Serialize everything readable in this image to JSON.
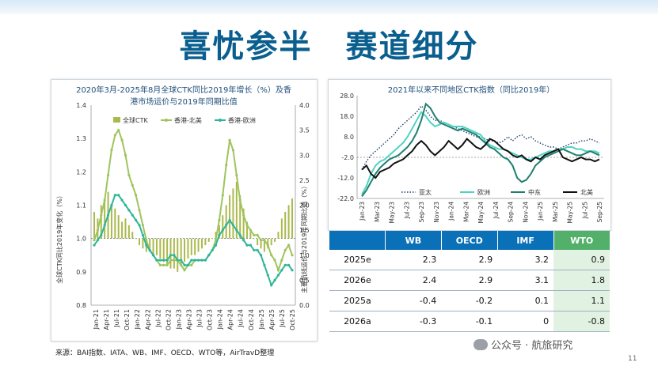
{
  "slide": {
    "title": "喜忧参半　赛道细分",
    "source": "来源：BAI指数、IATA、WB、IMF、OECD、WTO等，AirTravD整理",
    "watermark": "公众号 · 航旅研究",
    "page_number": "11"
  },
  "chart_data": [
    {
      "type": "bar+line",
      "title_line1": "2020年3月-2025年8月全球CTK同比2019年增长（%）及香",
      "title_line2": "港市场运价与2019年同期比值",
      "ylabel_left": "全球CTK同比2019年变化（%）",
      "ylabel_right": "主要航线运价与2019年同期比值（%）",
      "ylim_left": [
        0.8,
        1.4
      ],
      "ylim_right": [
        0.0,
        4.0
      ],
      "yticks_left": [
        "0.8",
        "0.9",
        "1.0",
        "1.1",
        "1.2",
        "1.3",
        "1.4"
      ],
      "yticks_right": [
        "0.0",
        "0.5",
        "1.0",
        "1.5",
        "2.0",
        "2.5",
        "3.0",
        "3.5",
        "4.0"
      ],
      "x_tick_labels": [
        "Jan-21",
        "Apr-21",
        "Jul-21",
        "Oct-21",
        "Jan-22",
        "Apr-22",
        "Jul-22",
        "Oct-22",
        "Jan-23",
        "Apr-23",
        "Jul-23",
        "Oct-23",
        "Jan-24",
        "Apr-24",
        "Jul-24",
        "Oct-24",
        "Jan-25",
        "Apr-25",
        "Jul-25",
        "Oct-25"
      ],
      "legend": [
        "全球CTK",
        "香港-北美",
        "香港-欧洲"
      ],
      "legend_position": "top",
      "reference_line_left": 1.0,
      "bar_color": "#aab94a",
      "line_colors": [
        "#9fc45e",
        "#30b598"
      ],
      "series": [
        {
          "name": "全球CTK",
          "axis": "left",
          "values": [
            1.08,
            1.06,
            1.1,
            1.12,
            1.14,
            1.1,
            1.09,
            1.07,
            1.05,
            1.06,
            1.04,
            1.02,
            1.0,
            0.98,
            0.97,
            0.96,
            0.96,
            0.95,
            0.95,
            0.94,
            0.93,
            0.92,
            0.91,
            0.91,
            0.9,
            0.92,
            0.93,
            0.94,
            0.95,
            0.95,
            0.96,
            0.97,
            0.98,
            0.99,
            1.0,
            1.02,
            1.04,
            1.07,
            1.1,
            1.13,
            1.15,
            1.17,
            1.13,
            1.09,
            1.05,
            1.02,
            1.0,
            0.98,
            0.97,
            0.96,
            0.97,
            0.98,
            0.99,
            1.02,
            1.06,
            1.08,
            1.1,
            1.12
          ]
        },
        {
          "name": "香港-北美",
          "axis": "right",
          "values": [
            1.3,
            1.5,
            1.8,
            2.1,
            2.6,
            3.1,
            3.4,
            3.5,
            3.3,
            3.0,
            2.6,
            2.4,
            2.2,
            1.9,
            1.6,
            1.3,
            1.1,
            1.0,
            0.9,
            0.8,
            0.8,
            0.8,
            0.9,
            0.9,
            0.9,
            0.8,
            0.7,
            0.8,
            0.8,
            0.9,
            0.9,
            0.9,
            0.9,
            1.0,
            1.1,
            1.3,
            1.7,
            2.2,
            2.8,
            3.3,
            3.1,
            2.6,
            2.1,
            1.8,
            1.6,
            1.5,
            1.4,
            1.4,
            1.3,
            1.3,
            1.2,
            1.0,
            0.9,
            0.7,
            0.9,
            1.1,
            1.2,
            1.0
          ]
        },
        {
          "name": "香港-欧洲",
          "axis": "right",
          "values": [
            1.2,
            1.3,
            1.4,
            1.6,
            1.8,
            2.0,
            2.2,
            2.2,
            2.1,
            2.0,
            1.9,
            1.8,
            1.7,
            1.6,
            1.4,
            1.2,
            1.1,
            1.0,
            0.9,
            0.9,
            0.9,
            0.9,
            1.0,
            1.0,
            0.9,
            0.9,
            0.8,
            0.8,
            0.9,
            0.9,
            0.9,
            0.9,
            0.9,
            1.0,
            1.1,
            1.2,
            1.4,
            1.5,
            1.6,
            1.7,
            1.6,
            1.5,
            1.4,
            1.3,
            1.2,
            1.2,
            1.1,
            1.1,
            1.0,
            0.8,
            0.6,
            0.4,
            0.5,
            0.6,
            0.7,
            0.8,
            0.8,
            0.7
          ]
        }
      ]
    },
    {
      "type": "line",
      "title": "2021年以来不同地区CTK指数（同比2019年）",
      "ylim": [
        -22,
        28
      ],
      "yticks": [
        "28.0",
        "18.0",
        "8.0",
        "-2.0",
        "-12.0",
        "-22.0"
      ],
      "reference_line": -2.0,
      "x_tick_labels": [
        "Jan-23",
        "Mar-23",
        "May-23",
        "Jul-23",
        "Sep-23",
        "Nov-23",
        "Jan-24",
        "Mar-24",
        "May-24",
        "Jul-24",
        "Sep-24",
        "Nov-24",
        "Jan-25",
        "Mar-25",
        "May-25",
        "Jul-25",
        "Sep-25"
      ],
      "legend_position": "bottom",
      "series": [
        {
          "name": "亚太",
          "style": "dotted",
          "color": "#1f3f6b",
          "values": [
            -8,
            -4,
            -1,
            1,
            3,
            5,
            7,
            9,
            12,
            14,
            16,
            18,
            20,
            23,
            21,
            18,
            16,
            16,
            15,
            14,
            13,
            12,
            11,
            10,
            9,
            8,
            8,
            7,
            6,
            6,
            5,
            6,
            8,
            6,
            8,
            9,
            7,
            8,
            6,
            5,
            4,
            3,
            3,
            2,
            3,
            4,
            5,
            5,
            6,
            6,
            7,
            6,
            5
          ]
        },
        {
          "name": "欧洲",
          "style": "solid",
          "color": "#4fd3c4",
          "values": [
            -20,
            -16,
            -10,
            -6,
            -4,
            -3,
            -1,
            1,
            3,
            5,
            8,
            12,
            16,
            20,
            18,
            15,
            13,
            14,
            15,
            14,
            13,
            13,
            13,
            12,
            11,
            10,
            9,
            6,
            4,
            3,
            2,
            2,
            1,
            0,
            -1,
            -2,
            -3,
            -3,
            -2,
            -1,
            0,
            1,
            1,
            2,
            2,
            3,
            3,
            2,
            2,
            1,
            1,
            1,
            0
          ]
        },
        {
          "name": "中东",
          "style": "solid",
          "color": "#1e7f6e",
          "values": [
            -21,
            -18,
            -14,
            -10,
            -7,
            -5,
            -3,
            -2,
            -1,
            1,
            3,
            6,
            10,
            16,
            24,
            22,
            18,
            15,
            14,
            13,
            12,
            11,
            12,
            11,
            10,
            9,
            7,
            5,
            3,
            2,
            0,
            -2,
            -3,
            -6,
            -12,
            -14,
            -13,
            -10,
            -6,
            -4,
            -2,
            -1,
            0,
            1,
            2,
            1,
            0,
            -1,
            -1,
            0,
            1,
            0,
            -1
          ]
        },
        {
          "name": "北美",
          "style": "solid",
          "color": "#111111",
          "values": [
            -8,
            -6,
            -10,
            -12,
            -9,
            -8,
            -7,
            -5,
            -4,
            -3,
            -1,
            1,
            4,
            6,
            4,
            1,
            -1,
            1,
            3,
            6,
            4,
            2,
            4,
            7,
            5,
            3,
            2,
            4,
            7,
            6,
            4,
            2,
            1,
            -1,
            -2,
            -1,
            -3,
            -4,
            -2,
            -3,
            -1,
            0,
            1,
            2,
            -2,
            -3,
            -4,
            -3,
            -2,
            -3,
            -3,
            -4,
            -3
          ]
        }
      ]
    },
    {
      "type": "table",
      "columns": [
        "",
        "WB",
        "OECD",
        "IMF",
        "WTO"
      ],
      "rows": [
        [
          "2025e",
          "2.3",
          "2.9",
          "3.2",
          "0.9"
        ],
        [
          "2026e",
          "2.4",
          "2.9",
          "3.1",
          "1.8"
        ],
        [
          "2025a",
          "-0.4",
          "-0.2",
          "0.1",
          "1.1"
        ],
        [
          "2026a",
          "-0.3",
          "-0.1",
          "0",
          "-0.8"
        ]
      ]
    }
  ]
}
